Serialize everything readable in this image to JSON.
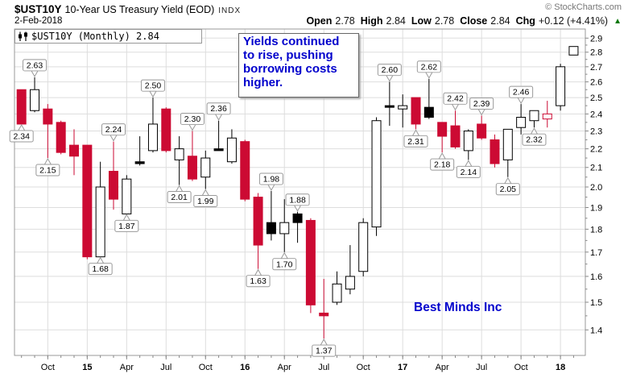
{
  "header": {
    "symbol": "$UST10Y",
    "title": "10-Year US Treasury Yield (EOD)",
    "exchange": "INDX",
    "date": "2-Feb-2018",
    "copyright": "© StockCharts.com",
    "quote": {
      "open_label": "Open",
      "open": "2.78",
      "high_label": "High",
      "high": "2.84",
      "low_label": "Low",
      "low": "2.78",
      "close_label": "Close",
      "close": "2.84",
      "chg_label": "Chg",
      "chg": "+0.12 (+4.41%)",
      "direction_icon": "▲"
    }
  },
  "legend": {
    "text": "$UST10Y (Monthly) 2.84"
  },
  "annotation": {
    "text": "Yields continued\nto rise, pushing\nborrowing costs\nhigher."
  },
  "watermark": {
    "text": "Best Minds Inc"
  },
  "colors": {
    "down": "#cc0a33",
    "up": "#000000",
    "grid": "#dddddd",
    "frame": "#999999",
    "tick": "#888888",
    "annotation_text": "#0000cc",
    "watermark_text": "#0000cc",
    "chg_up": "#007700",
    "callout_border": "#999999",
    "callout_bg": "#ffffff"
  },
  "chart_data": {
    "type": "candlestick",
    "scale": "log",
    "title": "$UST10Y (Monthly)",
    "ylim": [
      1.31,
      2.93
    ],
    "y_axis": {
      "ticks": [
        "2.9",
        "2.8",
        "2.7",
        "2.6",
        "2.5",
        "2.4",
        "2.3",
        "2.2",
        "2.1",
        "2.0",
        "1.9",
        "1.8",
        "1.7",
        "1.6",
        "1.5",
        "1.4"
      ]
    },
    "x_axis": {
      "labels": [
        {
          "text": "Oct",
          "index": 2,
          "bold": false
        },
        {
          "text": "15",
          "index": 5,
          "bold": true
        },
        {
          "text": "Apr",
          "index": 8,
          "bold": false
        },
        {
          "text": "Jul",
          "index": 11,
          "bold": false
        },
        {
          "text": "Oct",
          "index": 14,
          "bold": false
        },
        {
          "text": "16",
          "index": 17,
          "bold": true
        },
        {
          "text": "Apr",
          "index": 20,
          "bold": false
        },
        {
          "text": "Jul",
          "index": 23,
          "bold": false
        },
        {
          "text": "Oct",
          "index": 26,
          "bold": false
        },
        {
          "text": "17",
          "index": 29,
          "bold": true
        },
        {
          "text": "Apr",
          "index": 32,
          "bold": false
        },
        {
          "text": "Jul",
          "index": 35,
          "bold": false
        },
        {
          "text": "Oct",
          "index": 38,
          "bold": false
        },
        {
          "text": "18",
          "index": 41,
          "bold": true
        }
      ]
    },
    "candles": [
      {
        "month": "Aug 2014",
        "o": 2.55,
        "h": 2.55,
        "l": 2.34,
        "c": 2.34,
        "color": "red",
        "fill": "solid"
      },
      {
        "month": "Sep 2014",
        "o": 2.42,
        "h": 2.63,
        "l": 2.41,
        "c": 2.55,
        "color": "black",
        "fill": "hollow"
      },
      {
        "month": "Oct 2014",
        "o": 2.43,
        "h": 2.46,
        "l": 2.15,
        "c": 2.34,
        "color": "red",
        "fill": "solid"
      },
      {
        "month": "Nov 2014",
        "o": 2.35,
        "h": 2.36,
        "l": 2.17,
        "c": 2.18,
        "color": "red",
        "fill": "solid"
      },
      {
        "month": "Dec 2014",
        "o": 2.22,
        "h": 2.31,
        "l": 2.06,
        "c": 2.16,
        "color": "red",
        "fill": "solid"
      },
      {
        "month": "Jan 2015",
        "o": 2.22,
        "h": 2.22,
        "l": 1.67,
        "c": 1.68,
        "color": "red",
        "fill": "solid"
      },
      {
        "month": "Feb 2015",
        "o": 1.68,
        "h": 2.13,
        "l": 1.68,
        "c": 2.0,
        "color": "black",
        "fill": "hollow"
      },
      {
        "month": "Mar 2015",
        "o": 2.08,
        "h": 2.24,
        "l": 1.89,
        "c": 1.94,
        "color": "red",
        "fill": "solid"
      },
      {
        "month": "Apr 2015",
        "o": 1.87,
        "h": 2.06,
        "l": 1.87,
        "c": 2.04,
        "color": "black",
        "fill": "hollow"
      },
      {
        "month": "May 2015",
        "o": 2.13,
        "h": 2.27,
        "l": 2.11,
        "c": 2.12,
        "color": "black",
        "fill": "solid"
      },
      {
        "month": "Jun 2015",
        "o": 2.19,
        "h": 2.5,
        "l": 2.18,
        "c": 2.34,
        "color": "black",
        "fill": "hollow"
      },
      {
        "month": "Jul 2015",
        "o": 2.43,
        "h": 2.44,
        "l": 2.18,
        "c": 2.19,
        "color": "red",
        "fill": "solid"
      },
      {
        "month": "Aug 2015",
        "o": 2.14,
        "h": 2.27,
        "l": 2.01,
        "c": 2.2,
        "color": "black",
        "fill": "hollow"
      },
      {
        "month": "Sep 2015",
        "o": 2.16,
        "h": 2.3,
        "l": 2.03,
        "c": 2.04,
        "color": "red",
        "fill": "solid"
      },
      {
        "month": "Oct 2015",
        "o": 2.05,
        "h": 2.19,
        "l": 1.99,
        "c": 2.15,
        "color": "black",
        "fill": "hollow"
      },
      {
        "month": "Nov 2015",
        "o": 2.2,
        "h": 2.36,
        "l": 2.19,
        "c": 2.19,
        "color": "black",
        "fill": "solid"
      },
      {
        "month": "Dec 2015",
        "o": 2.13,
        "h": 2.31,
        "l": 2.12,
        "c": 2.26,
        "color": "black",
        "fill": "hollow"
      },
      {
        "month": "Jan 2016",
        "o": 2.24,
        "h": 2.25,
        "l": 1.93,
        "c": 1.94,
        "color": "red",
        "fill": "solid"
      },
      {
        "month": "Feb 2016",
        "o": 1.95,
        "h": 1.97,
        "l": 1.63,
        "c": 1.73,
        "color": "red",
        "fill": "solid"
      },
      {
        "month": "Mar 2016",
        "o": 1.83,
        "h": 1.98,
        "l": 1.75,
        "c": 1.78,
        "color": "black",
        "fill": "solid"
      },
      {
        "month": "Apr 2016",
        "o": 1.78,
        "h": 1.94,
        "l": 1.7,
        "c": 1.83,
        "color": "black",
        "fill": "hollow"
      },
      {
        "month": "May 2016",
        "o": 1.87,
        "h": 1.88,
        "l": 1.74,
        "c": 1.83,
        "color": "black",
        "fill": "solid"
      },
      {
        "month": "Jun 2016",
        "o": 1.84,
        "h": 1.85,
        "l": 1.46,
        "c": 1.49,
        "color": "red",
        "fill": "solid"
      },
      {
        "month": "Jul 2016",
        "o": 1.46,
        "h": 1.59,
        "l": 1.37,
        "c": 1.45,
        "color": "red",
        "fill": "solid"
      },
      {
        "month": "Aug 2016",
        "o": 1.5,
        "h": 1.62,
        "l": 1.49,
        "c": 1.57,
        "color": "black",
        "fill": "hollow"
      },
      {
        "month": "Sep 2016",
        "o": 1.55,
        "h": 1.73,
        "l": 1.53,
        "c": 1.6,
        "color": "black",
        "fill": "hollow"
      },
      {
        "month": "Oct 2016",
        "o": 1.62,
        "h": 1.85,
        "l": 1.6,
        "c": 1.83,
        "color": "black",
        "fill": "hollow"
      },
      {
        "month": "Nov 2016",
        "o": 1.81,
        "h": 2.38,
        "l": 1.77,
        "c": 2.36,
        "color": "black",
        "fill": "hollow"
      },
      {
        "month": "Dec 2016",
        "o": 2.45,
        "h": 2.6,
        "l": 2.33,
        "c": 2.44,
        "color": "black",
        "fill": "solid"
      },
      {
        "month": "Jan 2017",
        "o": 2.43,
        "h": 2.52,
        "l": 2.32,
        "c": 2.45,
        "color": "black",
        "fill": "hollow"
      },
      {
        "month": "Feb 2017",
        "o": 2.5,
        "h": 2.5,
        "l": 2.31,
        "c": 2.34,
        "color": "red",
        "fill": "solid"
      },
      {
        "month": "Mar 2017",
        "o": 2.44,
        "h": 2.62,
        "l": 2.37,
        "c": 2.38,
        "color": "black",
        "fill": "solid"
      },
      {
        "month": "Apr 2017",
        "o": 2.35,
        "h": 2.35,
        "l": 2.18,
        "c": 2.27,
        "color": "red",
        "fill": "solid"
      },
      {
        "month": "May 2017",
        "o": 2.33,
        "h": 2.42,
        "l": 2.2,
        "c": 2.21,
        "color": "red",
        "fill": "solid"
      },
      {
        "month": "Jun 2017",
        "o": 2.19,
        "h": 2.31,
        "l": 2.14,
        "c": 2.3,
        "color": "black",
        "fill": "hollow"
      },
      {
        "month": "Jul 2017",
        "o": 2.34,
        "h": 2.39,
        "l": 2.25,
        "c": 2.26,
        "color": "red",
        "fill": "solid"
      },
      {
        "month": "Aug 2017",
        "o": 2.25,
        "h": 2.28,
        "l": 2.1,
        "c": 2.12,
        "color": "red",
        "fill": "solid"
      },
      {
        "month": "Sep 2017",
        "o": 2.14,
        "h": 2.31,
        "l": 2.05,
        "c": 2.31,
        "color": "black",
        "fill": "hollow"
      },
      {
        "month": "Oct 2017",
        "o": 2.32,
        "h": 2.46,
        "l": 2.28,
        "c": 2.38,
        "color": "black",
        "fill": "hollow"
      },
      {
        "month": "Nov 2017",
        "o": 2.36,
        "h": 2.42,
        "l": 2.32,
        "c": 2.42,
        "color": "black",
        "fill": "hollow"
      },
      {
        "month": "Dec 2017",
        "o": 2.37,
        "h": 2.48,
        "l": 2.32,
        "c": 2.4,
        "color": "red",
        "fill": "hollow"
      },
      {
        "month": "Jan 2018",
        "o": 2.45,
        "h": 2.72,
        "l": 2.42,
        "c": 2.7,
        "color": "black",
        "fill": "hollow"
      },
      {
        "month": "Feb 2018",
        "o": 2.78,
        "h": 2.84,
        "l": 2.78,
        "c": 2.84,
        "color": "black",
        "fill": "hollow"
      }
    ],
    "callouts": [
      {
        "index": 0,
        "side": "below",
        "text": "2.34"
      },
      {
        "index": 1,
        "side": "above",
        "text": "2.63"
      },
      {
        "index": 2,
        "side": "below",
        "text": "2.15"
      },
      {
        "index": 6,
        "side": "below",
        "text": "1.68"
      },
      {
        "index": 7,
        "side": "above",
        "text": "2.24"
      },
      {
        "index": 8,
        "side": "below",
        "text": "1.87"
      },
      {
        "index": 10,
        "side": "above",
        "text": "2.50"
      },
      {
        "index": 12,
        "side": "below",
        "text": "2.01"
      },
      {
        "index": 13,
        "side": "above",
        "text": "2.30"
      },
      {
        "index": 14,
        "side": "below",
        "text": "1.99"
      },
      {
        "index": 15,
        "side": "above",
        "text": "2.36"
      },
      {
        "index": 18,
        "side": "below",
        "text": "1.63"
      },
      {
        "index": 19,
        "side": "above",
        "text": "1.98"
      },
      {
        "index": 20,
        "side": "below",
        "text": "1.70"
      },
      {
        "index": 21,
        "side": "above",
        "text": "1.88"
      },
      {
        "index": 23,
        "side": "below",
        "text": "1.37"
      },
      {
        "index": 28,
        "side": "above",
        "text": "2.60"
      },
      {
        "index": 30,
        "side": "below",
        "text": "2.31"
      },
      {
        "index": 31,
        "side": "above",
        "text": "2.62"
      },
      {
        "index": 32,
        "side": "below",
        "text": "2.18"
      },
      {
        "index": 33,
        "side": "above",
        "text": "2.42"
      },
      {
        "index": 34,
        "side": "below",
        "text": "2.14"
      },
      {
        "index": 35,
        "side": "above",
        "text": "2.39"
      },
      {
        "index": 37,
        "side": "below",
        "text": "2.05"
      },
      {
        "index": 38,
        "side": "above",
        "text": "2.46"
      },
      {
        "index": 39,
        "side": "below",
        "text": "2.32"
      }
    ]
  }
}
